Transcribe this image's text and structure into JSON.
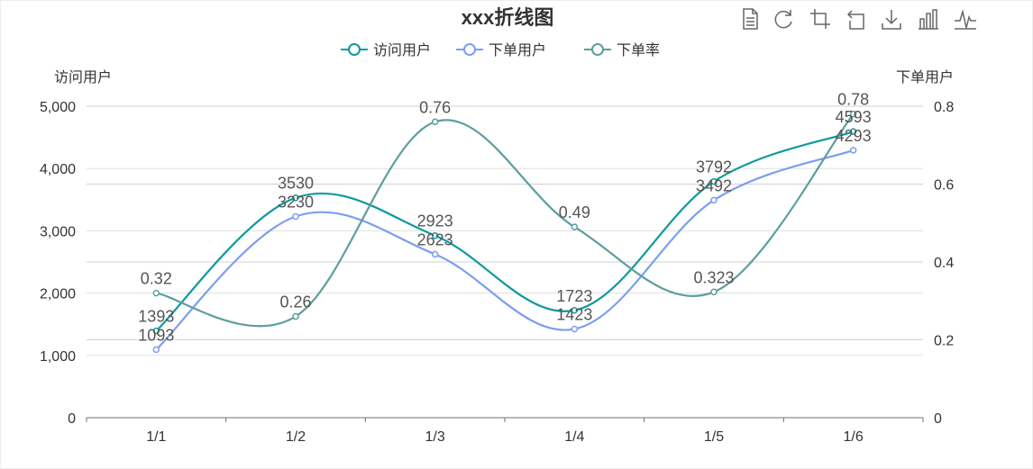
{
  "chart_data": {
    "type": "line",
    "title": "xxx折线图",
    "categories": [
      "1/1",
      "1/2",
      "1/3",
      "1/4",
      "1/5",
      "1/6"
    ],
    "series": [
      {
        "name": "访问用户",
        "axis": "left",
        "color": "#0e9a9d",
        "values": [
          1393,
          3530,
          2923,
          1723,
          3792,
          4593
        ],
        "labels": [
          "1393",
          "3530",
          "2923",
          "1723",
          "3792",
          "4593"
        ]
      },
      {
        "name": "下单用户",
        "axis": "left",
        "color": "#7b9ef0",
        "values": [
          1093,
          3230,
          2623,
          1423,
          3492,
          4293
        ],
        "labels": [
          "1093",
          "3230",
          "2623",
          "1423",
          "3492",
          "4293"
        ]
      },
      {
        "name": "下单率",
        "axis": "right",
        "color": "#5f9ea0",
        "values": [
          0.32,
          0.26,
          0.76,
          0.49,
          0.323,
          0.78
        ],
        "labels": [
          "0.32",
          "0.26",
          "0.76",
          "0.49",
          "0.323",
          "0.78"
        ]
      }
    ],
    "y_left": {
      "name": "访问用户",
      "min": 0,
      "max": 5000,
      "ticks": [
        "0",
        "1,000",
        "2,000",
        "3,000",
        "4,000",
        "5,000"
      ],
      "tick_values": [
        0,
        1000,
        2000,
        3000,
        4000,
        5000
      ]
    },
    "y_right": {
      "name": "下单用户",
      "min": 0,
      "max": 0.8,
      "ticks": [
        "0",
        "0.2",
        "0.4",
        "0.6",
        "0.8"
      ],
      "tick_values": [
        0,
        0.2,
        0.4,
        0.6,
        0.8
      ]
    },
    "legend_position": "top-center",
    "grid": true,
    "smooth": true
  },
  "toolbox": {
    "icons": [
      "data-view-icon",
      "refresh-icon",
      "zoom-icon",
      "zoom-reset-icon",
      "download-icon",
      "bar-chart-icon",
      "line-chart-icon"
    ]
  }
}
